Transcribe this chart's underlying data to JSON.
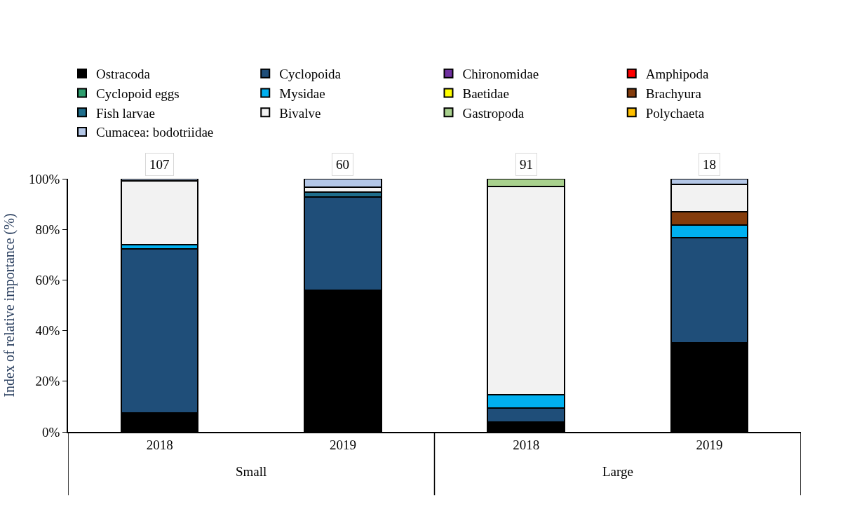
{
  "chart_data": {
    "type": "bar",
    "stacked": true,
    "ylabel": "Index of relative importance (%)",
    "categories": [
      "2018",
      "2019",
      "2018",
      "2019"
    ],
    "annotations": [
      "107",
      "60",
      "91",
      "18",
      "Small",
      "Large"
    ],
    "ylim": [
      0,
      100
    ],
    "yticks": [
      {
        "value": 0,
        "label": "0%"
      },
      {
        "value": 20,
        "label": "20%"
      },
      {
        "value": 40,
        "label": "40%"
      },
      {
        "value": 60,
        "label": "60%"
      },
      {
        "value": 80,
        "label": "80%"
      },
      {
        "value": 100,
        "label": "100%"
      }
    ],
    "legend": "top",
    "series": [
      {
        "name": "Ostracoda",
        "color": "#000000",
        "values": [
          7.5,
          56,
          4,
          35.3
        ]
      },
      {
        "name": "Cyclopoida",
        "color": "#1f4e79",
        "values": [
          64.7,
          36.7,
          5.3,
          41.4
        ]
      },
      {
        "name": "Chironomidae",
        "color": "#7030a0",
        "values": [
          null,
          null,
          null,
          null
        ]
      },
      {
        "name": "Amphipoda",
        "color": "#ff0000",
        "values": [
          null,
          null,
          null,
          null
        ]
      },
      {
        "name": "Cyclopoid eggs",
        "color": "#2e9e6e",
        "values": [
          null,
          null,
          null,
          null
        ]
      },
      {
        "name": "Mysidae",
        "color": "#00b0f0",
        "values": [
          1.8,
          null,
          5.5,
          5
        ]
      },
      {
        "name": "Baetidae",
        "color": "#ffff00",
        "values": [
          null,
          null,
          null,
          null
        ]
      },
      {
        "name": "Brachyura",
        "color": "#843c0c",
        "values": [
          null,
          null,
          null,
          5.3
        ]
      },
      {
        "name": "Fish larvae",
        "color": "#1f6e8c",
        "values": [
          null,
          2,
          null,
          null
        ]
      },
      {
        "name": "Bivalve",
        "color": "#f2f2f2",
        "values": [
          25.2,
          2,
          82.2,
          10.7
        ]
      },
      {
        "name": "Gastropoda",
        "color": "#a9d18e",
        "values": [
          null,
          null,
          3,
          null
        ]
      },
      {
        "name": "Polychaeta",
        "color": "#ffc000",
        "values": [
          null,
          null,
          null,
          null
        ]
      },
      {
        "name": "Cumacea: bodotriidae",
        "color": "#b4c7e7",
        "values": [
          0.8,
          3.3,
          null,
          2.3
        ]
      }
    ]
  }
}
